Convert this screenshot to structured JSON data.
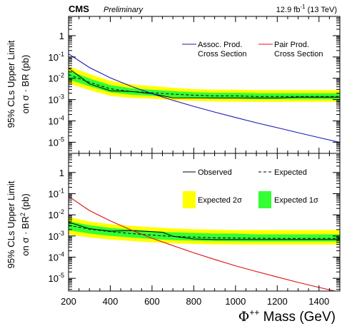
{
  "header": {
    "experiment": "CMS",
    "status": "Preliminary",
    "lumi_value": "12.9 fb",
    "lumi_exp": "-1",
    "lumi_energy": " (13 TeV)"
  },
  "chart_data": [
    {
      "type": "line",
      "panel": "top",
      "ylabel_line1": "95% CLs Upper Limit",
      "ylabel_line2": "on σ · BR (pb)",
      "x_ticks": [
        200,
        400,
        600,
        800,
        1000,
        1200,
        1400
      ],
      "xlim": [
        200,
        1500
      ],
      "ylim": [
        3e-06,
        8
      ],
      "log_y": true,
      "y_ticks": [
        {
          "v": 1e-05,
          "label": "10",
          "exp": "-5"
        },
        {
          "v": 0.0001,
          "label": "10",
          "exp": "-4"
        },
        {
          "v": 0.001,
          "label": "10",
          "exp": "-3"
        },
        {
          "v": 0.01,
          "label": "10",
          "exp": "-2"
        },
        {
          "v": 0.1,
          "label": "10",
          "exp": "-1"
        },
        {
          "v": 1,
          "label": "1",
          "exp": ""
        }
      ],
      "legend": [
        {
          "line1": "Assoc. Prod.",
          "line2": "Cross Section",
          "color": "#1a1ab3"
        },
        {
          "line1": "Pair Prod.",
          "line2": "Cross Section",
          "color": "#e01010"
        }
      ],
      "series": [
        {
          "name": "Assoc. Prod. Cross Section",
          "role": "theory",
          "color": "#1a1ab3",
          "x": [
            200,
            300,
            400,
            500,
            600,
            700,
            800,
            900,
            1000,
            1100,
            1200,
            1300,
            1400,
            1500
          ],
          "y": [
            0.14,
            0.032,
            0.0105,
            0.0042,
            0.0019,
            0.00093,
            0.00048,
            0.00026,
            0.000145,
            8.2e-05,
            4.8e-05,
            2.8e-05,
            1.65e-05,
            9.8e-06
          ]
        },
        {
          "role": "observed",
          "color": "#000000",
          "x": [
            200,
            300,
            400,
            500,
            600,
            700,
            800,
            900,
            1000,
            1100,
            1200,
            1300,
            1400,
            1500
          ],
          "y": [
            0.03,
            0.0055,
            0.0026,
            0.0024,
            0.0019,
            0.0012,
            0.0012,
            0.0012,
            0.0012,
            0.0012,
            0.0012,
            0.0013,
            0.0013,
            0.0013
          ]
        },
        {
          "role": "expected",
          "color": "#000000",
          "x": [
            200,
            300,
            400,
            500,
            600,
            700,
            800,
            900,
            1000,
            1100,
            1200,
            1300,
            1400,
            1500
          ],
          "y": [
            0.015,
            0.0065,
            0.0032,
            0.0024,
            0.0021,
            0.0018,
            0.0016,
            0.0015,
            0.0015,
            0.0014,
            0.0014,
            0.0014,
            0.0014,
            0.0014
          ]
        },
        {
          "role": "band1",
          "color": "#33ff33",
          "x": [
            200,
            300,
            400,
            500,
            600,
            700,
            800,
            900,
            1000,
            1100,
            1200,
            1300,
            1400,
            1500
          ],
          "lo": [
            0.0088,
            0.0042,
            0.0022,
            0.0017,
            0.0015,
            0.0013,
            0.0012,
            0.0011,
            0.0011,
            0.00105,
            0.00105,
            0.00105,
            0.00105,
            0.00105
          ],
          "hi": [
            0.023,
            0.0098,
            0.0048,
            0.0034,
            0.0029,
            0.0025,
            0.0022,
            0.0021,
            0.0021,
            0.002,
            0.002,
            0.002,
            0.002,
            0.002
          ]
        },
        {
          "role": "band2",
          "color": "#ffff00",
          "x": [
            200,
            300,
            400,
            500,
            600,
            700,
            800,
            900,
            1000,
            1100,
            1200,
            1300,
            1400,
            1500
          ],
          "lo": [
            0.0058,
            0.0028,
            0.0015,
            0.0012,
            0.0011,
            0.00095,
            0.00088,
            0.00082,
            0.0008,
            0.00078,
            0.00078,
            0.00078,
            0.00078,
            0.00078
          ],
          "hi": [
            0.036,
            0.016,
            0.0075,
            0.0052,
            0.0043,
            0.0036,
            0.0031,
            0.0029,
            0.0029,
            0.0028,
            0.0028,
            0.0028,
            0.0028,
            0.0028
          ]
        }
      ]
    },
    {
      "type": "line",
      "panel": "bottom",
      "ylabel_line1": "95% CLs Upper Limit",
      "ylabel_line2": "on σ · BR",
      "ylabel_exp": "2",
      "ylabel_unit": " (pb)",
      "xlabel_main": "Φ",
      "xlabel_sup": "++",
      "xlabel_rest": " Mass (GeV)",
      "x_ticks": [
        200,
        400,
        600,
        800,
        1000,
        1200,
        1400
      ],
      "xlim": [
        200,
        1500
      ],
      "ylim": [
        2.5e-06,
        8
      ],
      "log_y": true,
      "y_ticks": [
        {
          "v": 1e-05,
          "label": "10",
          "exp": "-5"
        },
        {
          "v": 0.0001,
          "label": "10",
          "exp": "-4"
        },
        {
          "v": 0.001,
          "label": "10",
          "exp": "-3"
        },
        {
          "v": 0.01,
          "label": "10",
          "exp": "-2"
        },
        {
          "v": 0.1,
          "label": "10",
          "exp": "-1"
        },
        {
          "v": 1,
          "label": "1",
          "exp": ""
        }
      ],
      "legend": [
        {
          "label": "Observed",
          "style": "solid"
        },
        {
          "label": "Expected",
          "style": "dashed"
        },
        {
          "label": "Expected 2σ",
          "color": "#ffff00"
        },
        {
          "label": "Expected 1σ",
          "color": "#33ff33"
        }
      ],
      "series": [
        {
          "name": "Pair Prod. Cross Section",
          "role": "theory",
          "color": "#e01010",
          "x": [
            200,
            300,
            400,
            500,
            600,
            700,
            800,
            900,
            1000,
            1100,
            1200,
            1300,
            1400,
            1500
          ],
          "y": [
            0.075,
            0.016,
            0.0052,
            0.0019,
            0.00078,
            0.00035,
            0.00016,
            7.8e-05,
            3.9e-05,
            2.1e-05,
            1.15e-05,
            6.4e-06,
            3.7e-06,
            2.2e-06
          ]
        },
        {
          "role": "observed",
          "color": "#000000",
          "x": [
            200,
            300,
            400,
            500,
            600,
            650,
            700,
            800,
            900,
            1000,
            1100,
            1200,
            1300,
            1400,
            1500
          ],
          "y": [
            0.0045,
            0.0022,
            0.0017,
            0.0018,
            0.0016,
            0.0015,
            0.00098,
            0.00072,
            0.00068,
            0.00068,
            0.00068,
            0.00068,
            0.00068,
            0.00068,
            0.00068
          ]
        },
        {
          "role": "expected",
          "color": "#000000",
          "x": [
            200,
            300,
            400,
            500,
            600,
            700,
            800,
            900,
            1000,
            1100,
            1200,
            1300,
            1400,
            1500
          ],
          "y": [
            0.0032,
            0.0021,
            0.0016,
            0.0013,
            0.0011,
            0.00095,
            0.00088,
            0.00082,
            0.0008,
            0.00078,
            0.00077,
            0.00077,
            0.00077,
            0.00077
          ]
        },
        {
          "role": "band1",
          "color": "#33ff33",
          "x": [
            200,
            300,
            400,
            500,
            600,
            700,
            800,
            900,
            1000,
            1100,
            1200,
            1300,
            1400,
            1500
          ],
          "lo": [
            0.0019,
            0.0013,
            0.001,
            0.00085,
            0.00072,
            0.00064,
            0.0006,
            0.00057,
            0.00056,
            0.00055,
            0.00055,
            0.00055,
            0.00055,
            0.00055
          ],
          "hi": [
            0.005,
            0.0032,
            0.0024,
            0.002,
            0.0017,
            0.0015,
            0.0014,
            0.0013,
            0.0013,
            0.0012,
            0.0012,
            0.0012,
            0.0012,
            0.0012
          ]
        },
        {
          "role": "band2",
          "color": "#ffff00",
          "x": [
            200,
            300,
            400,
            500,
            600,
            700,
            800,
            900,
            1000,
            1100,
            1200,
            1300,
            1400,
            1500
          ],
          "lo": [
            0.0012,
            0.00085,
            0.00068,
            0.00058,
            0.0005,
            0.00045,
            0.00042,
            0.0004,
            0.00039,
            0.00039,
            0.00039,
            0.00039,
            0.00039,
            0.00039
          ],
          "hi": [
            0.0078,
            0.0048,
            0.0036,
            0.003,
            0.0026,
            0.0023,
            0.0021,
            0.002,
            0.0019,
            0.0019,
            0.0019,
            0.0019,
            0.0019,
            0.0019
          ]
        }
      ]
    }
  ]
}
